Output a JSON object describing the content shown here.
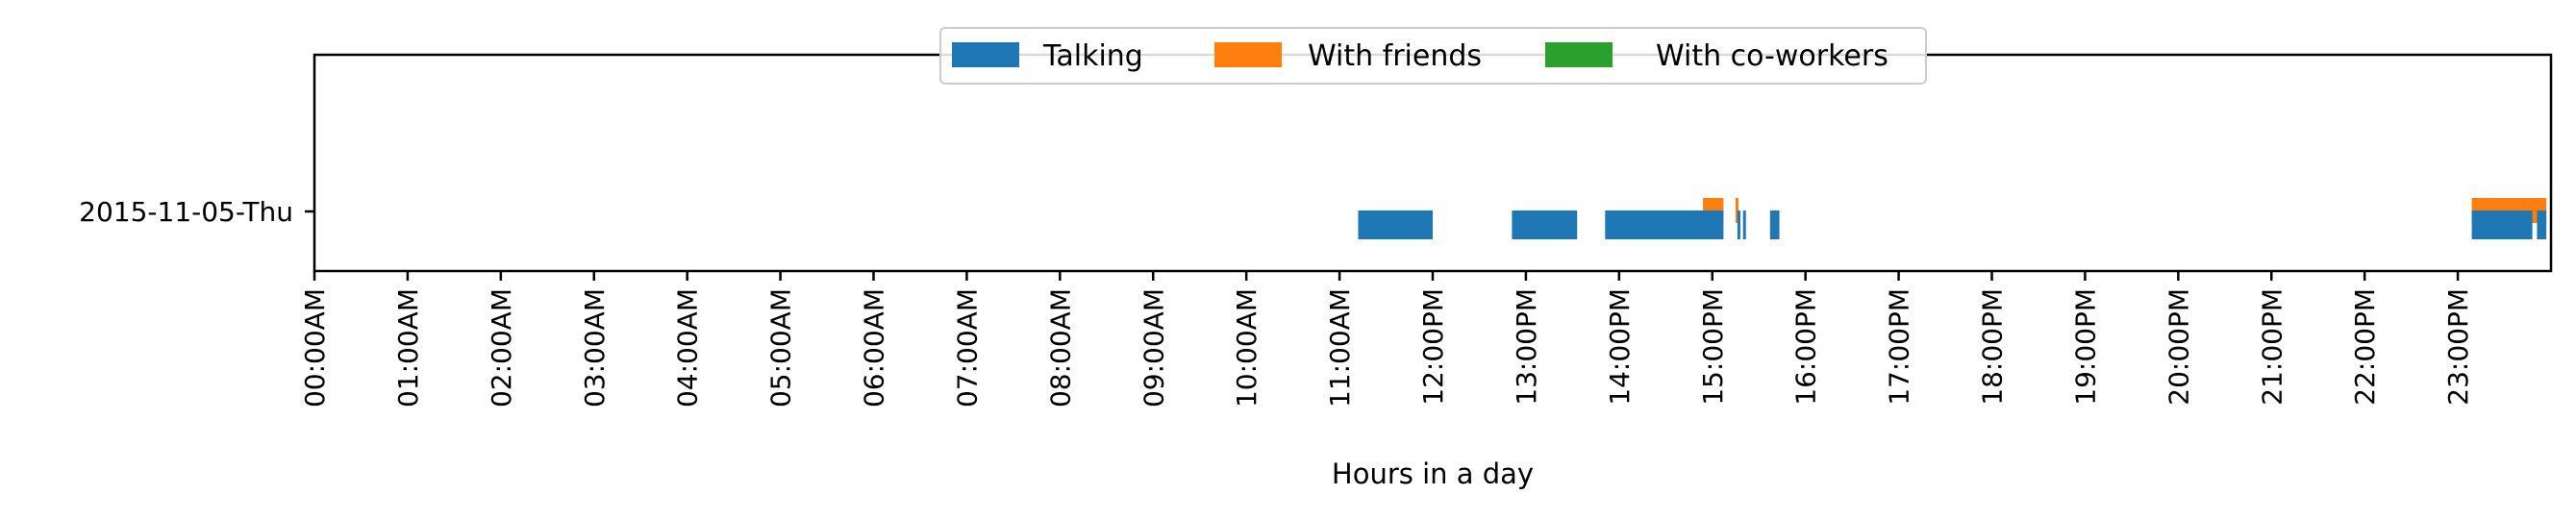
{
  "chart_data": {
    "type": "timeline",
    "xlabel": "Hours in a day",
    "xlim": [
      0,
      24
    ],
    "x_tick_labels": [
      "00:00AM",
      "01:00AM",
      "02:00AM",
      "03:00AM",
      "04:00AM",
      "05:00AM",
      "06:00AM",
      "07:00AM",
      "08:00AM",
      "09:00AM",
      "10:00AM",
      "11:00AM",
      "12:00PM",
      "13:00PM",
      "14:00PM",
      "15:00PM",
      "16:00PM",
      "17:00PM",
      "18:00PM",
      "19:00PM",
      "20:00PM",
      "21:00PM",
      "22:00PM",
      "23:00PM"
    ],
    "y_categories": [
      "2015-11-05-Thu"
    ],
    "legend": {
      "placement": "top-center",
      "entries": [
        {
          "name": "Talking",
          "color": "#1f77b4"
        },
        {
          "name": "With friends",
          "color": "#ff7f0e"
        },
        {
          "name": "With co-workers",
          "color": "#2ca02c"
        }
      ]
    },
    "series": [
      {
        "name": "Talking",
        "color": "#1f77b4",
        "intervals": [
          [
            11.2,
            12.0
          ],
          [
            12.85,
            13.55
          ],
          [
            13.85,
            15.12
          ],
          [
            15.27,
            15.3
          ],
          [
            15.33,
            15.36
          ],
          [
            15.62,
            15.72
          ],
          [
            23.15,
            23.8
          ],
          [
            23.85,
            23.95
          ]
        ]
      },
      {
        "name": "With friends",
        "color": "#ff7f0e",
        "intervals": [
          [
            14.9,
            15.12
          ],
          [
            15.25,
            15.28
          ],
          [
            23.15,
            23.95
          ]
        ]
      },
      {
        "name": "With co-workers",
        "color": "#2ca02c",
        "intervals": []
      }
    ]
  }
}
